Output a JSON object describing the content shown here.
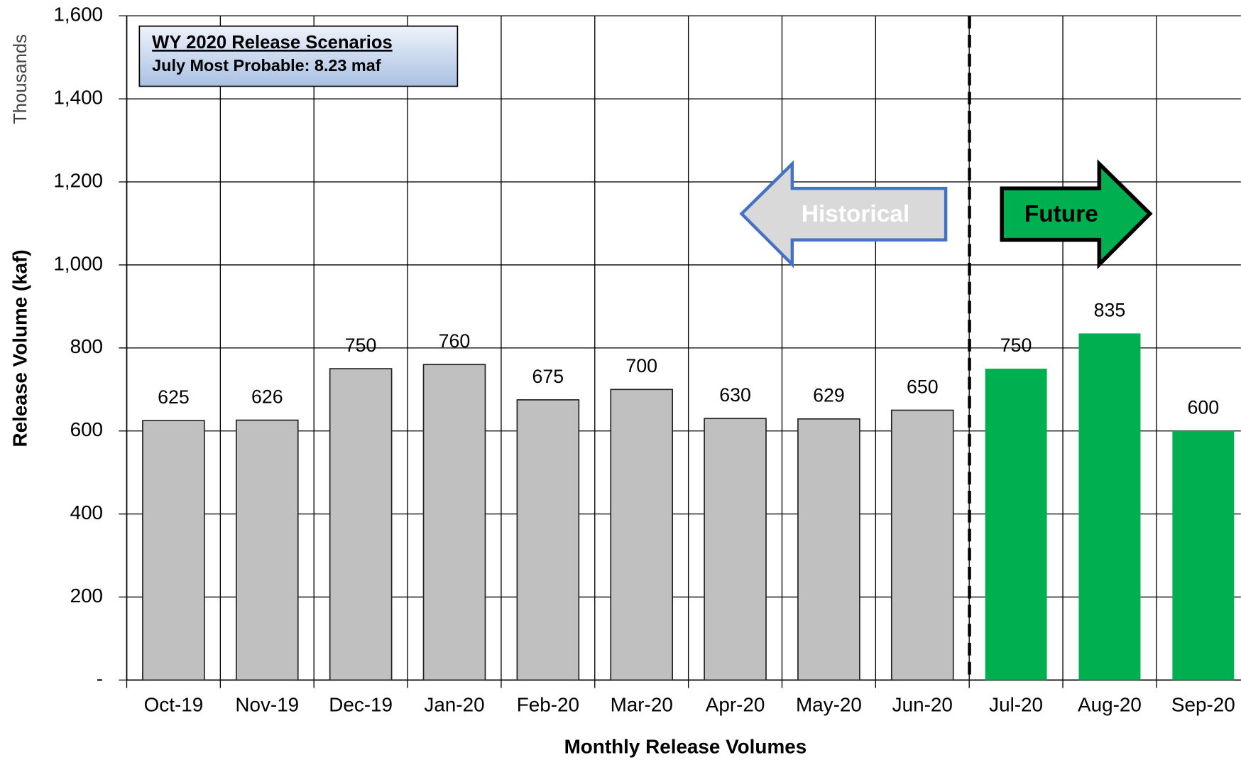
{
  "chart_data": {
    "type": "bar",
    "y_axis_label": "Release Volume (kaf)",
    "y_axis_units": "Thousands",
    "x_axis_label": "Monthly Release Volumes",
    "legend_box": {
      "title": "WY 2020 Release Scenarios",
      "subtitle": "July Most Probable: 8.23 maf"
    },
    "annotations": [
      "Historical",
      "Future"
    ],
    "categories": [
      "Oct-19",
      "Nov-19",
      "Dec-19",
      "Jan-20",
      "Feb-20",
      "Mar-20",
      "Apr-20",
      "May-20",
      "Jun-20",
      "Jul-20",
      "Aug-20",
      "Sep-20"
    ],
    "values": [
      625,
      626,
      750,
      760,
      675,
      700,
      630,
      629,
      650,
      750,
      835,
      600
    ],
    "colors": [
      "#c0c0c0",
      "#c0c0c0",
      "#c0c0c0",
      "#c0c0c0",
      "#c0c0c0",
      "#c0c0c0",
      "#c0c0c0",
      "#c0c0c0",
      "#c0c0c0",
      "#00b050",
      "#00b050",
      "#00b050"
    ],
    "ylim": [
      0,
      1600
    ],
    "yticks": [
      {
        "value": 0,
        "label": "-"
      },
      200,
      400,
      600,
      800,
      {
        "value": 1000,
        "label": "1,000"
      },
      {
        "value": 1200,
        "label": "1,200"
      },
      {
        "value": 1400,
        "label": "1,400"
      },
      {
        "value": 1600,
        "label": "1,600"
      }
    ],
    "grid": true
  }
}
